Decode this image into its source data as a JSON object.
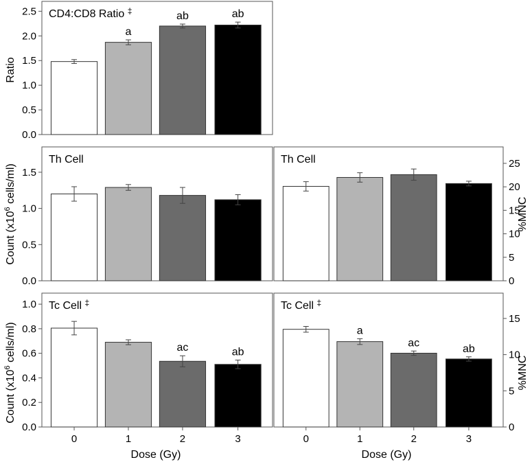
{
  "figure": {
    "y_label_count": "Count (x10",
    "y_label_count_exp": "6",
    "y_label_count_unit": " cells/ml)",
    "y_label_ratio": "Ratio",
    "y_label_mnc": "%MNC",
    "x_label": "Dose (Gy)"
  },
  "chart_data": [
    {
      "id": "ratio",
      "type": "bar",
      "title": "CD4:CD8 Ratio",
      "title_mark": "‡",
      "ylabel": "Ratio",
      "xlabel": "",
      "categories": [
        "0",
        "1",
        "2",
        "3"
      ],
      "values": [
        1.48,
        1.87,
        2.2,
        2.22
      ],
      "errors": [
        0.04,
        0.05,
        0.04,
        0.06
      ],
      "sig_labels": [
        "",
        "a",
        "ab",
        "ab"
      ],
      "ylim": [
        0,
        2.7
      ],
      "yticks": [
        "0.0",
        "0.5",
        "1.0",
        "1.5",
        "2.0",
        "2.5"
      ],
      "grid": false
    },
    {
      "id": "th-count",
      "type": "bar",
      "title": "Th Cell",
      "title_mark": "",
      "ylabel": "Count (x10^6 cells/ml)",
      "xlabel": "",
      "categories": [
        "0",
        "1",
        "2",
        "3"
      ],
      "values": [
        1.2,
        1.29,
        1.18,
        1.12
      ],
      "errors": [
        0.1,
        0.04,
        0.11,
        0.07
      ],
      "sig_labels": [
        "",
        "",
        "",
        ""
      ],
      "ylim": [
        0,
        1.85
      ],
      "yticks": [
        "0.0",
        "0.5",
        "1.0",
        "1.5"
      ],
      "grid": false
    },
    {
      "id": "th-mnc",
      "type": "bar",
      "title": "Th Cell",
      "title_mark": "",
      "ylabel": "%MNC",
      "xlabel": "",
      "categories": [
        "0",
        "1",
        "2",
        "3"
      ],
      "values": [
        20.1,
        22.0,
        22.6,
        20.7
      ],
      "errors": [
        1.0,
        1.0,
        1.2,
        0.5
      ],
      "sig_labels": [
        "",
        "",
        "",
        ""
      ],
      "ylim": [
        0,
        28.5
      ],
      "yticks": [
        "0",
        "5",
        "10",
        "15",
        "20",
        "25"
      ],
      "grid": false
    },
    {
      "id": "tc-count",
      "type": "bar",
      "title": "Tc Cell",
      "title_mark": "‡",
      "ylabel": "Count (x10^6 cells/ml)",
      "xlabel": "Dose (Gy)",
      "categories": [
        "0",
        "1",
        "2",
        "3"
      ],
      "values": [
        0.805,
        0.69,
        0.535,
        0.51
      ],
      "errors": [
        0.055,
        0.02,
        0.045,
        0.035
      ],
      "sig_labels": [
        "",
        "",
        "ac",
        "ab"
      ],
      "ylim": [
        0,
        1.09
      ],
      "yticks": [
        "0.0",
        "0.2",
        "0.4",
        "0.6",
        "0.8",
        "1.0"
      ],
      "grid": false
    },
    {
      "id": "tc-mnc",
      "type": "bar",
      "title": "Tc Cell",
      "title_mark": "‡",
      "ylabel": "%MNC",
      "xlabel": "Dose (Gy)",
      "categories": [
        "0",
        "1",
        "2",
        "3"
      ],
      "values": [
        13.5,
        11.8,
        10.2,
        9.4
      ],
      "errors": [
        0.4,
        0.4,
        0.3,
        0.3
      ],
      "sig_labels": [
        "",
        "a",
        "ac",
        "ab"
      ],
      "ylim": [
        0,
        18.5
      ],
      "yticks": [
        "0",
        "5",
        "10",
        "15"
      ],
      "grid": false
    }
  ]
}
